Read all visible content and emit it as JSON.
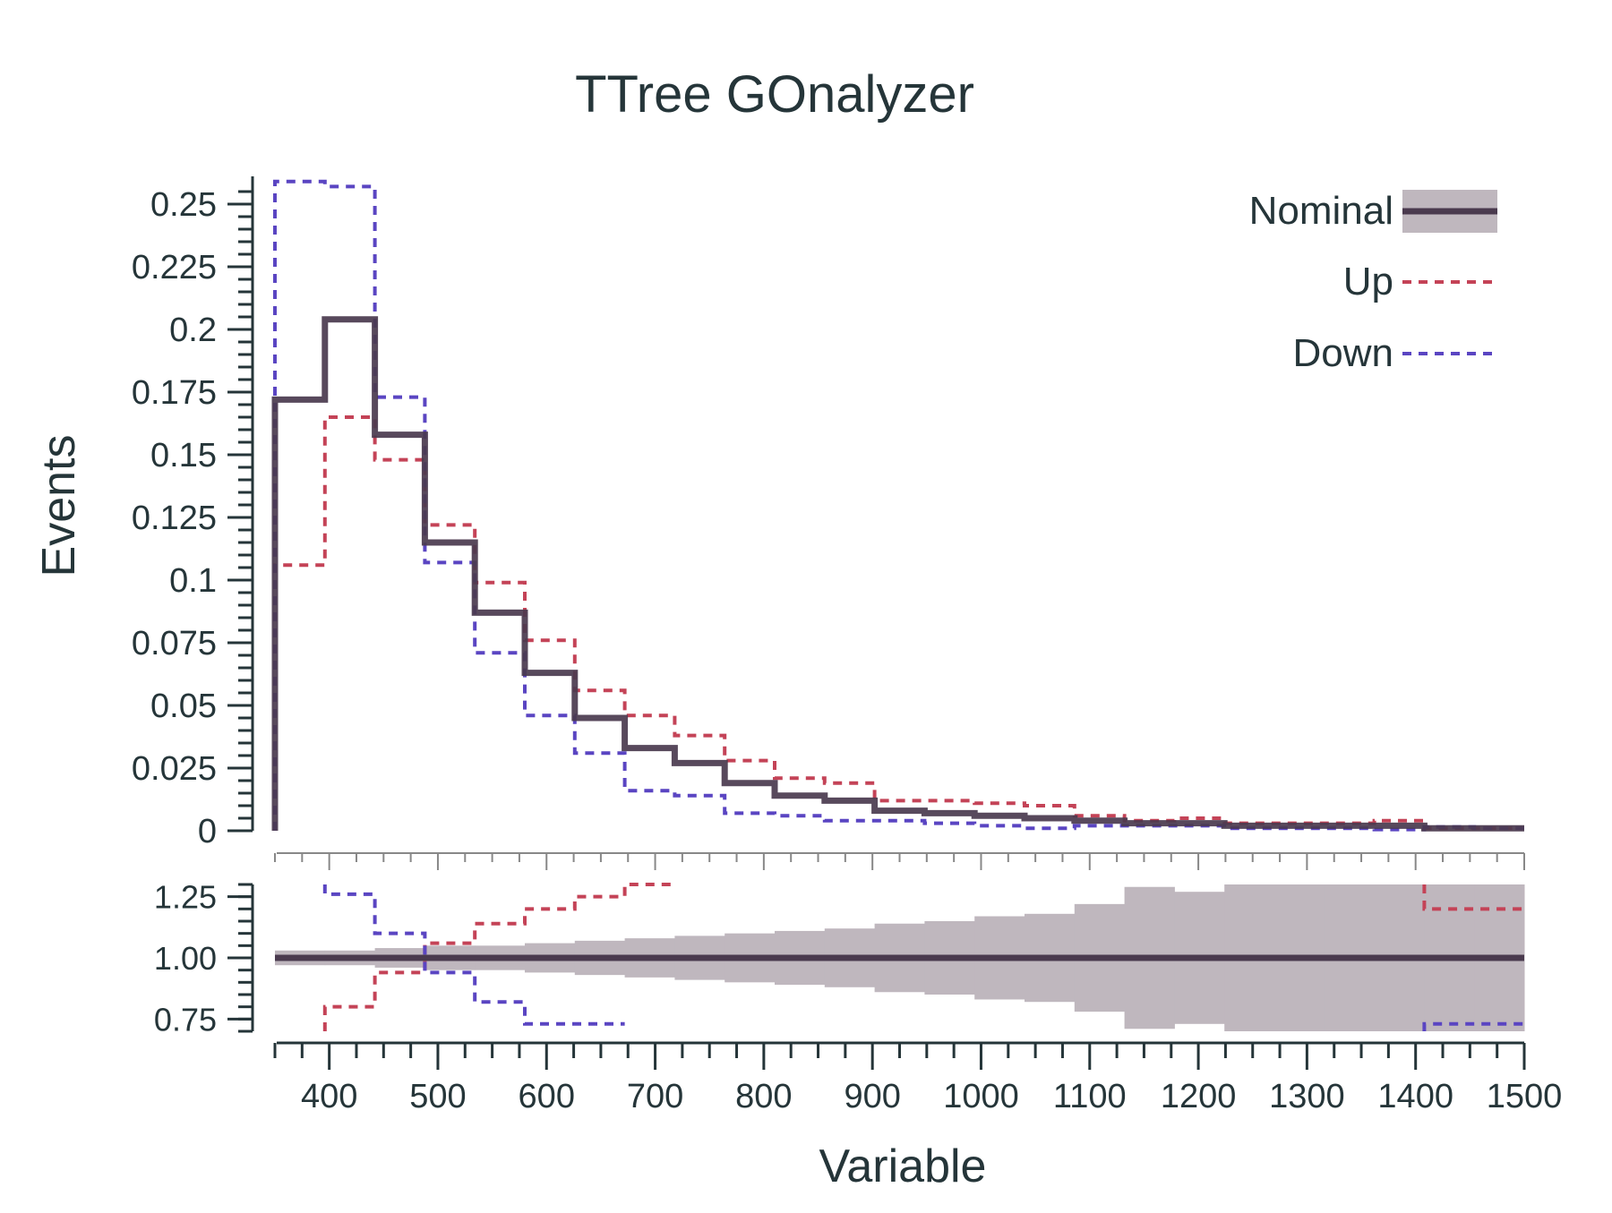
{
  "chart_data": {
    "type": "line",
    "title": "TTree GOnalyzer",
    "xlabel": "Variable",
    "ylabel": "Events",
    "xlim": [
      350,
      1500
    ],
    "ylim": [
      0,
      0.26
    ],
    "bin_edges": [
      350,
      396,
      442,
      488,
      534,
      580,
      626,
      672,
      718,
      764,
      810,
      856,
      902,
      948,
      994,
      1040,
      1086,
      1132,
      1178,
      1224,
      1270,
      1316,
      1362,
      1408,
      1454,
      1500
    ],
    "series": [
      {
        "name": "Nominal",
        "style": "solid-with-band",
        "color": "#4a3a4e",
        "values": [
          0.172,
          0.204,
          0.158,
          0.115,
          0.087,
          0.063,
          0.045,
          0.033,
          0.027,
          0.019,
          0.014,
          0.012,
          0.008,
          0.007,
          0.006,
          0.005,
          0.004,
          0.003,
          0.003,
          0.002,
          0.002,
          0.002,
          0.002,
          0.001,
          0.001
        ]
      },
      {
        "name": "Up",
        "style": "dashed",
        "color": "#c44357",
        "values": [
          0.106,
          0.165,
          0.148,
          0.122,
          0.099,
          0.076,
          0.056,
          0.046,
          0.038,
          0.028,
          0.021,
          0.019,
          0.012,
          0.012,
          0.011,
          0.01,
          0.006,
          0.004,
          0.005,
          0.003,
          0.003,
          0.003,
          0.004,
          0.001,
          0.001
        ]
      },
      {
        "name": "Down",
        "style": "dashed",
        "color": "#5a45c2",
        "values": [
          0.259,
          0.257,
          0.173,
          0.107,
          0.071,
          0.046,
          0.031,
          0.016,
          0.014,
          0.007,
          0.006,
          0.004,
          0.004,
          0.003,
          0.002,
          0.001,
          0.002,
          0.002,
          0.002,
          0.001,
          0.001,
          0.001,
          0.0005,
          0.0015,
          0.001
        ]
      }
    ],
    "ratio_panel": {
      "ylim": [
        0.7,
        1.3
      ],
      "yticks": [
        "0.75",
        "1.00",
        "1.25"
      ],
      "band_halfwidth": [
        0.03,
        0.03,
        0.04,
        0.05,
        0.05,
        0.06,
        0.07,
        0.08,
        0.09,
        0.1,
        0.11,
        0.12,
        0.14,
        0.15,
        0.17,
        0.18,
        0.22,
        0.29,
        0.27,
        0.3,
        0.3,
        0.3,
        0.3,
        0.3,
        0.3
      ],
      "up_ratio": [
        0.8,
        0.8,
        0.94,
        1.06,
        1.14,
        1.2,
        1.25,
        1.3,
        null,
        null,
        null,
        null,
        null,
        null,
        null,
        null,
        null,
        null,
        null,
        null,
        null,
        null,
        null,
        1.2,
        1.2
      ],
      "down_ratio": [
        1.26,
        1.26,
        1.1,
        0.94,
        0.82,
        0.73,
        0.73,
        null,
        null,
        null,
        null,
        null,
        null,
        null,
        null,
        null,
        null,
        null,
        null,
        null,
        null,
        null,
        null,
        0.73,
        0.73
      ],
      "ratio_x_start": 396
    },
    "yticks_main": [
      "0",
      "0.025",
      "0.05",
      "0.075",
      "0.1",
      "0.125",
      "0.15",
      "0.175",
      "0.2",
      "0.225",
      "0.25"
    ],
    "xticks": [
      "400",
      "500",
      "600",
      "700",
      "800",
      "900",
      "1000",
      "1100",
      "1200",
      "1300",
      "1400",
      "1500"
    ],
    "legend": {
      "position": "top-right",
      "entries": [
        "Nominal",
        "Up",
        "Down"
      ]
    },
    "colors": {
      "axis": "#253539",
      "band": "#bfb7be",
      "nominal": "#4a3a4e",
      "up": "#c44357",
      "down": "#5a45c2"
    }
  }
}
